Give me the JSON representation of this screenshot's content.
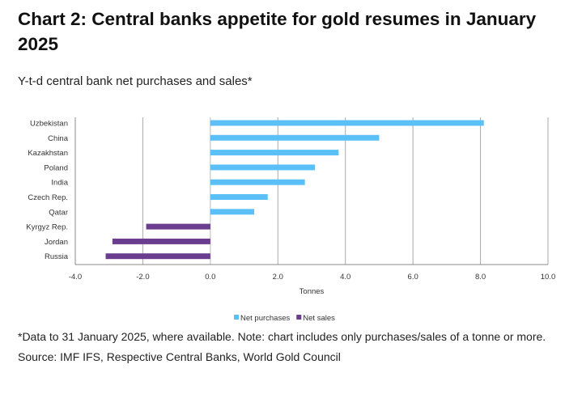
{
  "title": "Chart 2:  Central banks appetite for gold resumes in January 2025",
  "subtitle": "Y-t-d central bank net purchases and sales*",
  "chart_data": {
    "type": "bar",
    "orientation": "horizontal",
    "categories": [
      "Uzbekistan",
      "China",
      "Kazakhstan",
      "Poland",
      "India",
      "Czech Rep.",
      "Qatar",
      "Kyrgyz Rep.",
      "Jordan",
      "Russia"
    ],
    "series": [
      {
        "name": "Net purchases",
        "color": "#5bc0f8",
        "values": [
          8.1,
          5.0,
          3.8,
          3.1,
          2.8,
          1.7,
          1.3,
          null,
          null,
          null
        ]
      },
      {
        "name": "Net sales",
        "color": "#6b3d8e",
        "values": [
          null,
          null,
          null,
          null,
          null,
          null,
          null,
          -1.9,
          -2.9,
          -3.1
        ]
      }
    ],
    "xlabel": "Tonnes",
    "xlim": [
      -4,
      10
    ],
    "xticks": [
      "-4.0",
      "-2.0",
      "0.0",
      "2.0",
      "4.0",
      "6.0",
      "8.0",
      "10.0"
    ],
    "grid": true,
    "legend": "bottom"
  },
  "notes": {
    "footnote": "*Data to 31 January 2025, where available. Note: chart includes only purchases/sales of a tonne or more.",
    "source": "Source: IMF IFS, Respective Central Banks, World Gold Council"
  }
}
